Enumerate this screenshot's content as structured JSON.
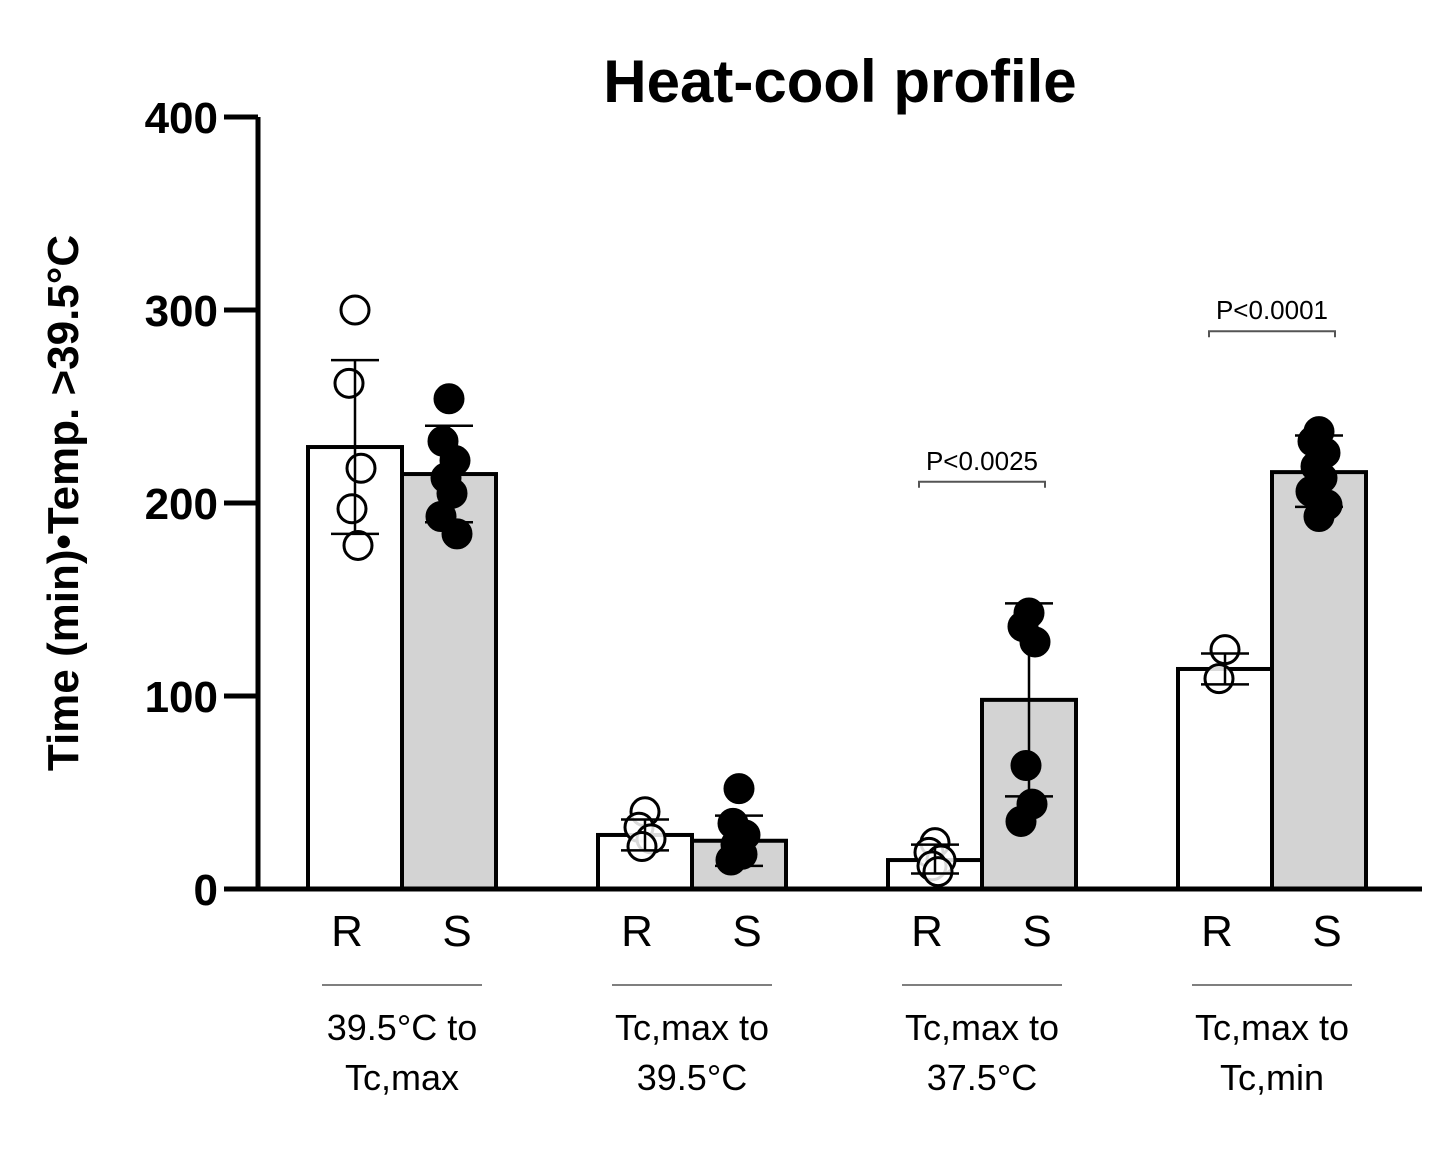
{
  "chart_data": {
    "type": "bar",
    "title": "Heat-cool profile",
    "ylabel": "Time (min)•Temp. >39.5°C",
    "xlabel": "",
    "ylim": [
      0,
      400
    ],
    "yticks": [
      0,
      100,
      200,
      300,
      400
    ],
    "ytick_labels": [
      "0",
      "100",
      "200",
      "300",
      "400"
    ],
    "groups": [
      {
        "label_lines": [
          "39.5°C to",
          "Tc,max"
        ],
        "bars": [
          {
            "label": "R",
            "fill": "#ffffff",
            "marker": "open",
            "mean": 229,
            "sd_low": 184,
            "sd_high": 274,
            "points": [
              300,
              262,
              218,
              197,
              178
            ]
          },
          {
            "label": "S",
            "fill": "#d3d3d3",
            "marker": "filled",
            "mean": 215,
            "sd_low": 190,
            "sd_high": 240,
            "points": [
              254,
              232,
              222,
              213,
              205,
              193,
              184
            ]
          }
        ],
        "significance": null
      },
      {
        "label_lines": [
          "Tc,max to",
          "39.5°C"
        ],
        "bars": [
          {
            "label": "R",
            "fill": "#ffffff",
            "marker": "open",
            "mean": 28,
            "sd_low": 20,
            "sd_high": 36,
            "points": [
              40,
              32,
              26,
              22
            ]
          },
          {
            "label": "S",
            "fill": "#d3d3d3",
            "marker": "filled",
            "mean": 25,
            "sd_low": 12,
            "sd_high": 38,
            "points": [
              52,
              34,
              28,
              23,
              18,
              15
            ]
          }
        ],
        "significance": null
      },
      {
        "label_lines": [
          "Tc,max to",
          "37.5°C"
        ],
        "bars": [
          {
            "label": "R",
            "fill": "#ffffff",
            "marker": "open",
            "mean": 15,
            "sd_low": 8,
            "sd_high": 23,
            "points": [
              24,
              19,
              15,
              12,
              9
            ]
          },
          {
            "label": "S",
            "fill": "#d3d3d3",
            "marker": "filled",
            "mean": 98,
            "sd_low": 48,
            "sd_high": 148,
            "points": [
              143,
              136,
              128,
              64,
              44,
              35
            ]
          }
        ],
        "significance": "P<0.0025",
        "sig_value": 211
      },
      {
        "label_lines": [
          "Tc,max to",
          "Tc,min"
        ],
        "bars": [
          {
            "label": "R",
            "fill": "#ffffff",
            "marker": "open",
            "mean": 114,
            "sd_low": 106,
            "sd_high": 122,
            "points": [
              124,
              109
            ]
          },
          {
            "label": "S",
            "fill": "#d3d3d3",
            "marker": "filled",
            "mean": 216,
            "sd_low": 198,
            "sd_high": 235,
            "points": [
              237,
              232,
              226,
              219,
              213,
              206,
              199,
              193
            ]
          }
        ],
        "significance": "P<0.0001",
        "sig_value": 289
      }
    ],
    "colors": {
      "open_bar": "#ffffff",
      "filled_bar": "#d3d3d3",
      "stroke": "#000000"
    }
  }
}
